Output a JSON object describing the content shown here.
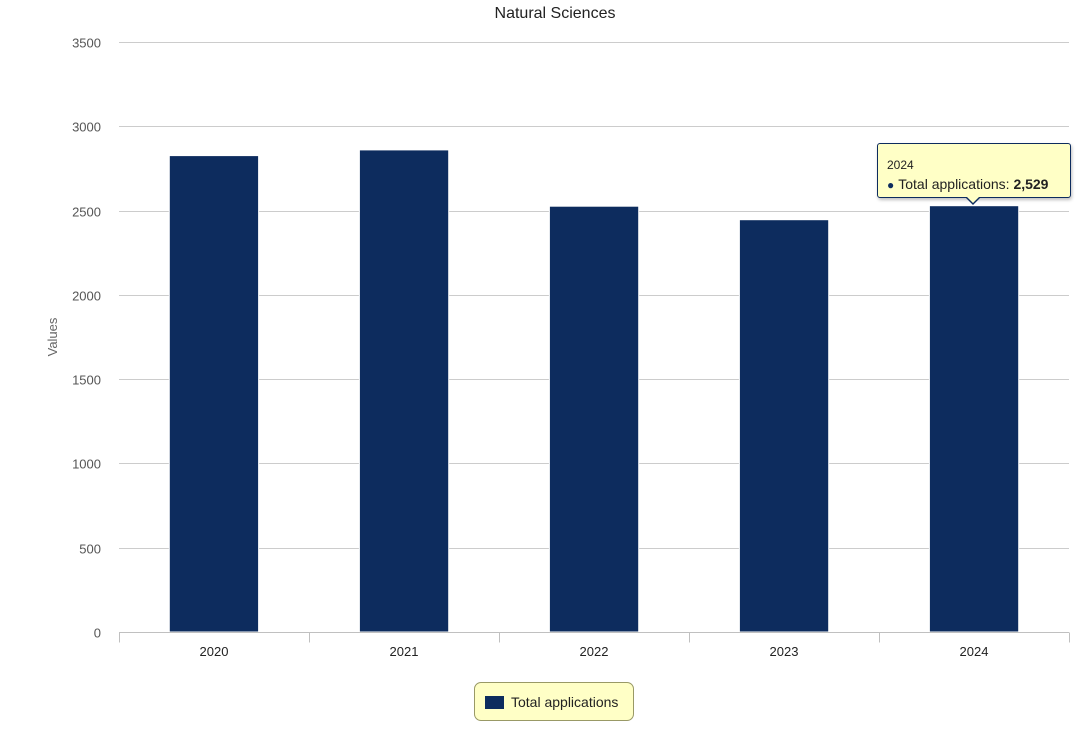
{
  "chart_data": {
    "type": "bar",
    "title": "Natural Sciences",
    "xlabel": "",
    "ylabel": "Values",
    "categories": [
      "2020",
      "2021",
      "2022",
      "2023",
      "2024"
    ],
    "series": [
      {
        "name": "Total applications",
        "values": [
          2826,
          2860,
          2526,
          2446,
          2529
        ],
        "color": "#0d2c5e"
      }
    ],
    "ylim": [
      0,
      3500
    ],
    "y_ticks": [
      "0",
      "500",
      "1000",
      "1500",
      "2000",
      "2500",
      "3000",
      "3500"
    ],
    "grid": true,
    "legend": "bottom-center",
    "tooltip": {
      "category": "2024",
      "series_label": "Total applications:",
      "value": "2,529"
    },
    "legend_background": "#ffffc6",
    "grid_color": "#cccccc"
  }
}
